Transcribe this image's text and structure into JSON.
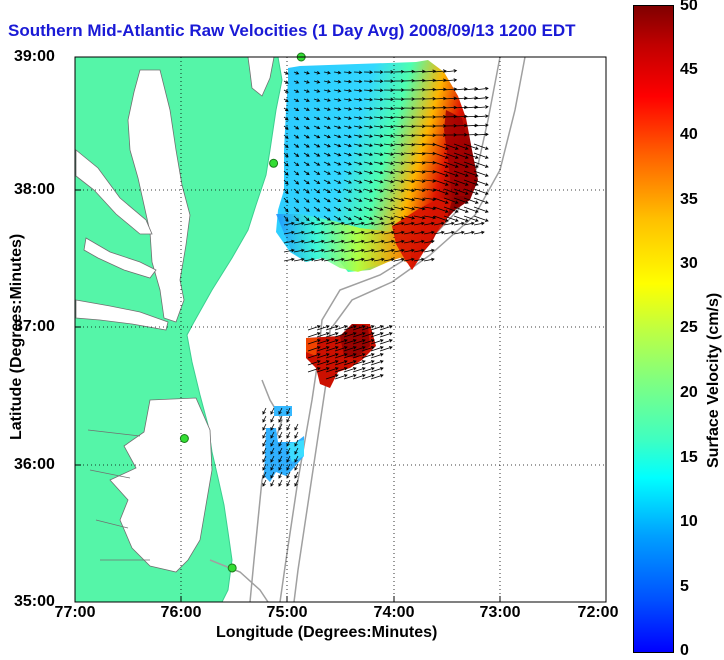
{
  "title": "Southern Mid-Atlantic Raw Velocities (1 Day Avg) 2008/09/13 1200 EDT",
  "x_axis": {
    "label": "Longitude (Degrees:Minutes)",
    "ticks": [
      "77:00",
      "76:00",
      "75:00",
      "74:00",
      "73:00",
      "72:00"
    ]
  },
  "y_axis": {
    "label": "Latitude (Degrees:Minutes)",
    "ticks": [
      "39:00",
      "38:00",
      "37:00",
      "36:00",
      "35:00"
    ]
  },
  "colorbar": {
    "label": "Surface Velocity (cm/s)",
    "ticks": [
      "50",
      "45",
      "40",
      "35",
      "30",
      "25",
      "20",
      "15",
      "10",
      "5",
      "0"
    ],
    "range": [
      0,
      50
    ],
    "colormap": "jet"
  },
  "map": {
    "lon_range": [
      -77,
      -72
    ],
    "lat_range": [
      35,
      39
    ],
    "grid": "dotted",
    "land_color": "#55f5a8",
    "bathymetry_color": "#a0a0a0",
    "vector_color": "#000000",
    "station_color": "#33dd33",
    "stations": [
      {
        "lon": -74.87,
        "lat": 39.0
      },
      {
        "lon": -75.13,
        "lat": 38.22
      },
      {
        "lon": -75.97,
        "lat": 36.2
      },
      {
        "lon": -75.52,
        "lat": 35.25
      }
    ],
    "velocity_regions": [
      {
        "name": "northern-field",
        "speed_range_cms": [
          5,
          50
        ]
      },
      {
        "name": "central-patch",
        "speed_range_cms": [
          35,
          50
        ]
      },
      {
        "name": "southern-patch",
        "speed_range_cms": [
          5,
          15
        ]
      }
    ]
  }
}
